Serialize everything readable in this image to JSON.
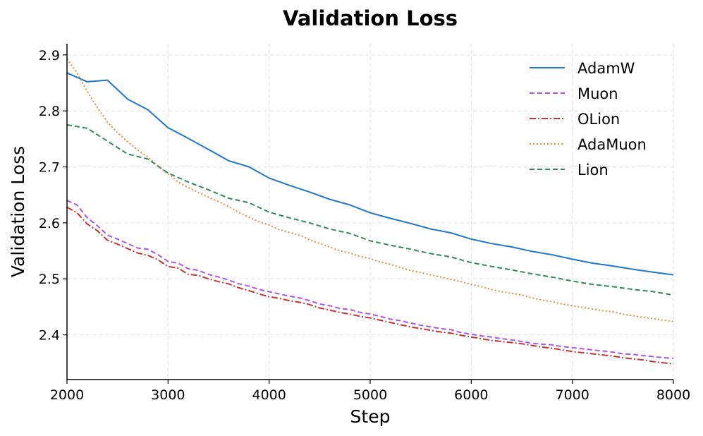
{
  "chart_data": {
    "type": "line",
    "title": "Validation Loss",
    "xlabel": "Step",
    "ylabel": "Validation Loss",
    "xlim": [
      2000,
      8000
    ],
    "ylim": [
      2.32,
      2.92
    ],
    "x_ticks": [
      2000,
      3000,
      4000,
      5000,
      6000,
      7000,
      8000
    ],
    "y_ticks": [
      2.4,
      2.5,
      2.6,
      2.7,
      2.8,
      2.9
    ],
    "x_tick_labels": [
      "2000",
      "3000",
      "4000",
      "5000",
      "6000",
      "7000",
      "8000"
    ],
    "y_tick_labels": [
      "2.4",
      "2.5",
      "2.6",
      "2.7",
      "2.8",
      "2.9"
    ],
    "grid": true,
    "legend_position": "top-right",
    "series": [
      {
        "name": "AdamW",
        "color": "#1f77d4",
        "dash": "solid",
        "x": [
          2000,
          2200,
          2400,
          2600,
          2800,
          3000,
          3200,
          3400,
          3600,
          3800,
          4000,
          4200,
          4400,
          4600,
          4800,
          5000,
          5200,
          5400,
          5600,
          5800,
          6000,
          6200,
          6400,
          6600,
          6800,
          7000,
          7200,
          7400,
          7600,
          7800,
          8000
        ],
        "y": [
          2.868,
          2.852,
          2.855,
          2.821,
          2.802,
          2.77,
          2.751,
          2.731,
          2.711,
          2.7,
          2.68,
          2.667,
          2.655,
          2.642,
          2.632,
          2.618,
          2.608,
          2.599,
          2.589,
          2.582,
          2.571,
          2.563,
          2.557,
          2.549,
          2.543,
          2.535,
          2.528,
          2.523,
          2.517,
          2.512,
          2.507
        ]
      },
      {
        "name": "Muon",
        "color": "#a855f7",
        "dash": "dashed",
        "x": [
          2000,
          2100,
          2200,
          2300,
          2400,
          2500,
          2600,
          2700,
          2800,
          2900,
          3000,
          3100,
          3200,
          3300,
          3400,
          3500,
          3600,
          3700,
          3800,
          3900,
          4000,
          4100,
          4200,
          4300,
          4400,
          4500,
          4600,
          4700,
          4800,
          4900,
          5000,
          5100,
          5200,
          5300,
          5400,
          5500,
          5600,
          5700,
          5800,
          5900,
          6000,
          6100,
          6200,
          6300,
          6400,
          6500,
          6600,
          6700,
          6800,
          6900,
          7000,
          7100,
          7200,
          7300,
          7400,
          7500,
          7600,
          7700,
          7800,
          7900,
          8000
        ],
        "y": [
          2.64,
          2.632,
          2.609,
          2.595,
          2.578,
          2.571,
          2.563,
          2.555,
          2.553,
          2.543,
          2.531,
          2.528,
          2.518,
          2.515,
          2.508,
          2.503,
          2.498,
          2.491,
          2.487,
          2.481,
          2.477,
          2.473,
          2.469,
          2.466,
          2.461,
          2.455,
          2.452,
          2.447,
          2.445,
          2.44,
          2.437,
          2.433,
          2.428,
          2.425,
          2.421,
          2.417,
          2.414,
          2.411,
          2.409,
          2.404,
          2.401,
          2.398,
          2.396,
          2.393,
          2.391,
          2.388,
          2.385,
          2.383,
          2.382,
          2.379,
          2.377,
          2.375,
          2.373,
          2.371,
          2.369,
          2.366,
          2.365,
          2.363,
          2.361,
          2.359,
          2.358
        ]
      },
      {
        "name": "OLion",
        "color": "#c8332f",
        "dash": "dashdot",
        "x": [
          2000,
          2100,
          2200,
          2300,
          2400,
          2500,
          2600,
          2700,
          2800,
          2900,
          3000,
          3100,
          3200,
          3300,
          3400,
          3500,
          3600,
          3700,
          3800,
          3900,
          4000,
          4100,
          4200,
          4300,
          4400,
          4500,
          4600,
          4700,
          4800,
          4900,
          5000,
          5100,
          5200,
          5300,
          5400,
          5500,
          5600,
          5700,
          5800,
          5900,
          6000,
          6100,
          6200,
          6300,
          6400,
          6500,
          6600,
          6700,
          6800,
          6900,
          7000,
          7100,
          7200,
          7300,
          7400,
          7500,
          7600,
          7700,
          7800,
          7900,
          8000
        ],
        "y": [
          2.628,
          2.618,
          2.598,
          2.586,
          2.569,
          2.562,
          2.554,
          2.546,
          2.542,
          2.534,
          2.522,
          2.519,
          2.508,
          2.506,
          2.5,
          2.495,
          2.491,
          2.484,
          2.479,
          2.473,
          2.468,
          2.465,
          2.461,
          2.458,
          2.454,
          2.448,
          2.444,
          2.44,
          2.437,
          2.433,
          2.43,
          2.426,
          2.422,
          2.418,
          2.414,
          2.411,
          2.408,
          2.405,
          2.403,
          2.399,
          2.396,
          2.393,
          2.39,
          2.388,
          2.386,
          2.384,
          2.381,
          2.378,
          2.376,
          2.373,
          2.37,
          2.368,
          2.366,
          2.364,
          2.362,
          2.359,
          2.357,
          2.355,
          2.352,
          2.35,
          2.348
        ]
      },
      {
        "name": "AdaMuon",
        "color": "#e8893a",
        "dash": "dotted",
        "x": [
          2000,
          2100,
          2200,
          2300,
          2400,
          2500,
          2600,
          2700,
          2800,
          2900,
          3000,
          3100,
          3200,
          3300,
          3400,
          3500,
          3600,
          3700,
          3800,
          3900,
          4000,
          4100,
          4200,
          4300,
          4400,
          4500,
          4600,
          4700,
          4800,
          4900,
          5000,
          5100,
          5200,
          5300,
          5400,
          5500,
          5600,
          5700,
          5800,
          5900,
          6000,
          6100,
          6200,
          6300,
          6400,
          6500,
          6600,
          6700,
          6800,
          6900,
          7000,
          7100,
          7200,
          7300,
          7400,
          7500,
          7600,
          7700,
          7800,
          7900,
          8000
        ],
        "y": [
          2.893,
          2.868,
          2.835,
          2.806,
          2.78,
          2.761,
          2.745,
          2.73,
          2.718,
          2.701,
          2.688,
          2.673,
          2.663,
          2.654,
          2.646,
          2.638,
          2.629,
          2.619,
          2.61,
          2.602,
          2.596,
          2.588,
          2.583,
          2.578,
          2.57,
          2.563,
          2.557,
          2.55,
          2.546,
          2.54,
          2.536,
          2.53,
          2.526,
          2.52,
          2.515,
          2.511,
          2.507,
          2.503,
          2.499,
          2.495,
          2.49,
          2.486,
          2.481,
          2.477,
          2.474,
          2.471,
          2.466,
          2.462,
          2.459,
          2.455,
          2.452,
          2.449,
          2.446,
          2.443,
          2.441,
          2.437,
          2.434,
          2.431,
          2.429,
          2.426,
          2.424
        ]
      },
      {
        "name": "Lion",
        "color": "#2e8b57",
        "dash": "dashed",
        "x": [
          2000,
          2200,
          2400,
          2600,
          2800,
          3000,
          3200,
          3400,
          3600,
          3800,
          4000,
          4200,
          4400,
          4600,
          4800,
          5000,
          5200,
          5400,
          5600,
          5800,
          6000,
          6200,
          6400,
          6600,
          6800,
          7000,
          7200,
          7400,
          7600,
          7800,
          8000
        ],
        "y": [
          2.775,
          2.769,
          2.746,
          2.723,
          2.714,
          2.689,
          2.673,
          2.659,
          2.644,
          2.636,
          2.619,
          2.609,
          2.6,
          2.589,
          2.581,
          2.568,
          2.56,
          2.553,
          2.545,
          2.539,
          2.529,
          2.522,
          2.516,
          2.509,
          2.503,
          2.496,
          2.49,
          2.486,
          2.481,
          2.477,
          2.471
        ]
      }
    ]
  }
}
